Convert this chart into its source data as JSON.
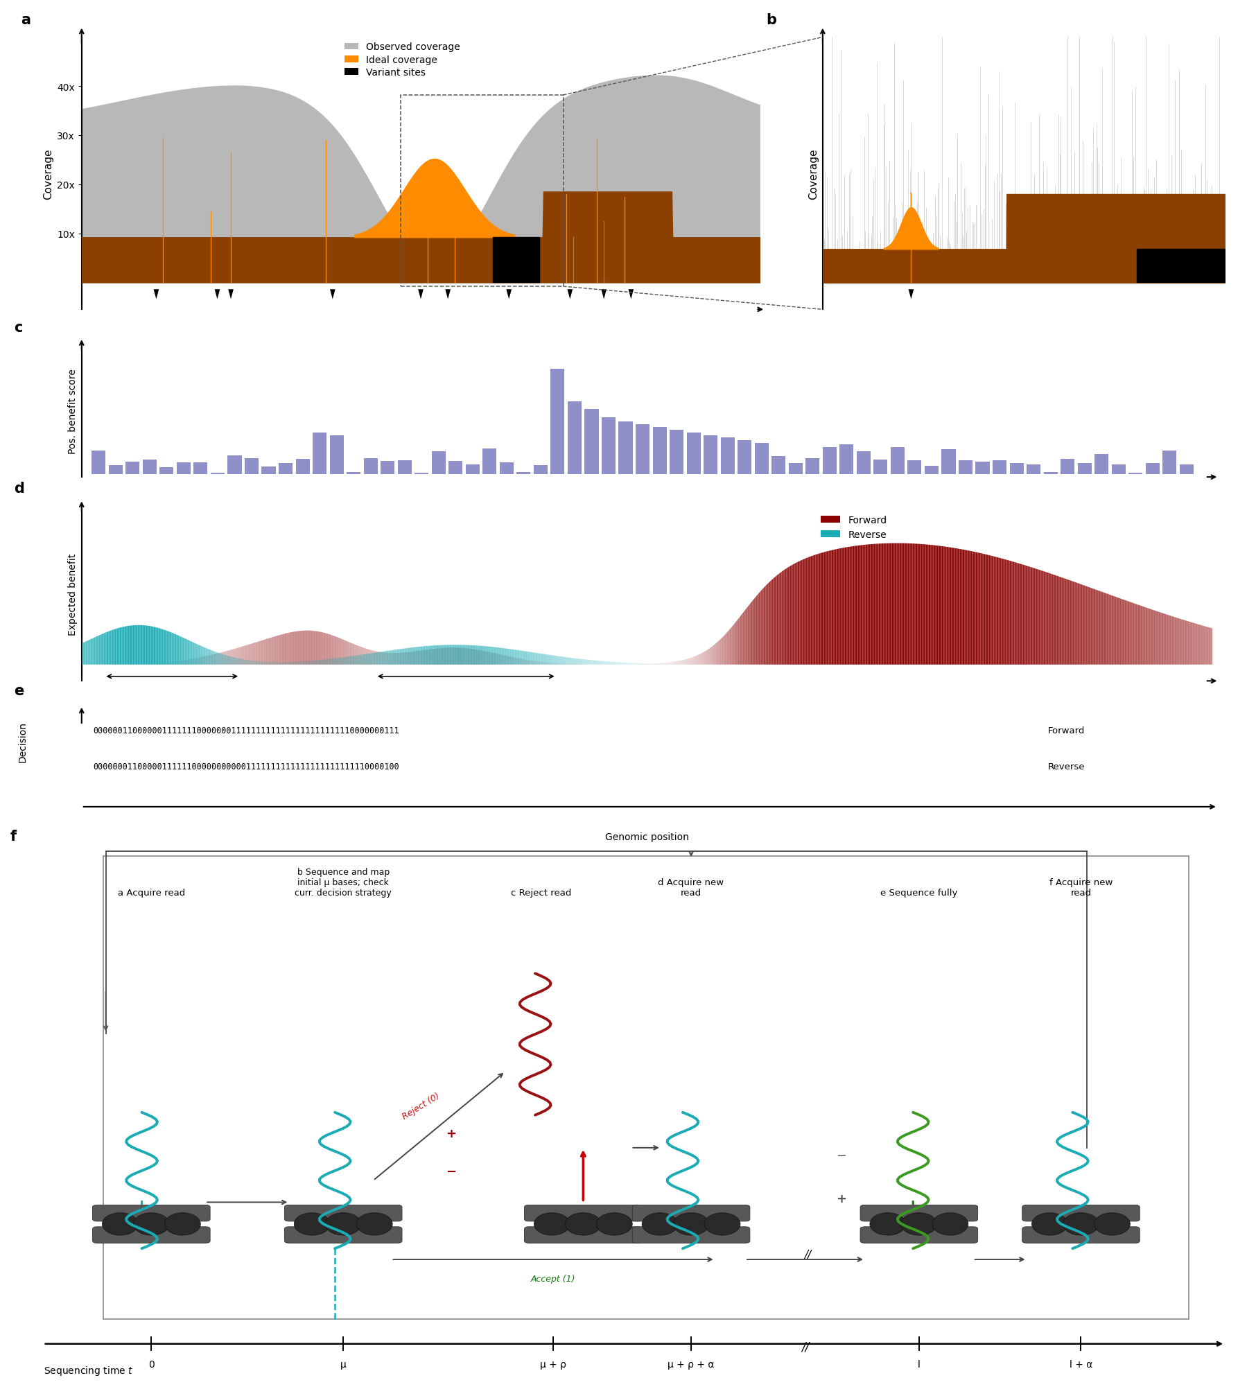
{
  "panel_a": {
    "ylabel": "Coverage",
    "ytick_labels": [
      "10x",
      "20x",
      "30x",
      "40x"
    ],
    "observed_color": "#b8b8b8",
    "ideal_base_color": "#8B4000",
    "ideal_peak_color": "#FF8C00",
    "legend_observed": "Observed coverage",
    "legend_ideal": "Ideal coverage",
    "legend_variant": "Variant sites"
  },
  "panel_b": {
    "ylabel": "Coverage"
  },
  "panel_c": {
    "ylabel": "Pos. benefit score",
    "bar_color": "#9090C8"
  },
  "panel_d": {
    "ylabel": "Expected benefit",
    "forward_color": "#8B0000",
    "reverse_color": "#1AABB5",
    "legend_forward": "Forward",
    "legend_reverse": "Reverse"
  },
  "panel_e": {
    "ylabel": "Decision",
    "xlabel": "Genomic position",
    "forward_text": "00000011000000111111100000001111111111111111111111110000000111",
    "reverse_text": "00000001100000111111000000000001111111111111111111111110000100",
    "forward_label": "Forward",
    "reverse_label": "Reverse"
  },
  "panel_f": {
    "xlabel": "Sequencing time t",
    "time_labels": [
      "0",
      "μ",
      "μ + ρ",
      "μ + ρ + α",
      "l",
      "l + α"
    ],
    "step_a_label": "a Acquire read",
    "step_b_label": "b Sequence and map\ninitial μ bases; check\ncurr. decision strategy",
    "step_c_label": "c Reject read",
    "step_d_label": "d Acquire new\nread",
    "step_e_label": "e Sequence fully",
    "step_f_label": "f Acquire new\nread",
    "reject_label": "Reject (0)",
    "accept_label": "Accept (1)",
    "cyan": "#1AABB5",
    "dark_red": "#9B1010",
    "green": "#3A9A22",
    "device_color": "#606060"
  }
}
